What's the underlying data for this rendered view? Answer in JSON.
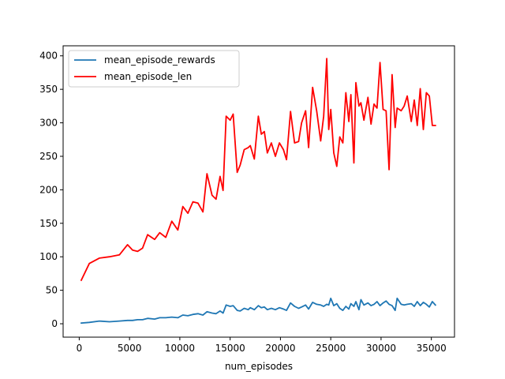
{
  "chart_data": {
    "type": "line",
    "xlabel": "num_episodes",
    "ylabel": "",
    "xlim": [
      -1600,
      37300
    ],
    "ylim": [
      -20,
      415
    ],
    "xticks": [
      0,
      5000,
      10000,
      15000,
      20000,
      25000,
      30000,
      35000
    ],
    "yticks": [
      0,
      50,
      100,
      150,
      200,
      250,
      300,
      350,
      400
    ],
    "grid": false,
    "legend_position": "top-left",
    "series": [
      {
        "name": "mean_episode_rewards",
        "color": "#1f77b4",
        "x": [
          200,
          1000,
          2000,
          3000,
          4000,
          4800,
          5300,
          5800,
          6300,
          6800,
          7500,
          8000,
          8600,
          9200,
          9800,
          10300,
          10800,
          11300,
          11800,
          12300,
          12700,
          13200,
          13600,
          14000,
          14300,
          14600,
          15000,
          15300,
          15700,
          16000,
          16400,
          16800,
          17000,
          17400,
          17800,
          18100,
          18400,
          18700,
          19100,
          19500,
          19900,
          20300,
          20600,
          21000,
          21400,
          21800,
          22100,
          22500,
          22800,
          23200,
          23600,
          24000,
          24300,
          24600,
          24800,
          25000,
          25300,
          25600,
          25900,
          26200,
          26500,
          26800,
          27000,
          27300,
          27500,
          27800,
          28000,
          28300,
          28700,
          29000,
          29300,
          29600,
          29900,
          30200,
          30500,
          30800,
          31100,
          31400,
          31600,
          32000,
          32300,
          32600,
          33000,
          33300,
          33600,
          33900,
          34200,
          34500,
          34800,
          35100,
          35400
        ],
        "values": [
          1,
          2,
          4,
          3,
          4,
          5,
          5,
          6,
          6,
          8,
          7,
          9,
          9,
          10,
          9,
          13,
          12,
          14,
          15,
          13,
          18,
          16,
          15,
          19,
          16,
          28,
          26,
          27,
          20,
          19,
          23,
          21,
          24,
          21,
          27,
          24,
          25,
          21,
          23,
          21,
          24,
          22,
          20,
          31,
          26,
          23,
          25,
          28,
          22,
          32,
          29,
          28,
          26,
          29,
          28,
          38,
          27,
          30,
          23,
          20,
          26,
          22,
          30,
          26,
          33,
          21,
          36,
          28,
          31,
          27,
          29,
          33,
          27,
          31,
          34,
          29,
          27,
          20,
          38,
          29,
          28,
          29,
          30,
          26,
          33,
          27,
          32,
          29,
          25,
          33,
          28
        ]
      },
      {
        "name": "mean_episode_len",
        "color": "#ff0000",
        "x": [
          200,
          1000,
          2000,
          3000,
          4000,
          4800,
          5300,
          5800,
          6300,
          6800,
          7500,
          8000,
          8600,
          9200,
          9800,
          10300,
          10800,
          11300,
          11800,
          12300,
          12700,
          13200,
          13600,
          14000,
          14300,
          14600,
          15000,
          15300,
          15700,
          16000,
          16400,
          16800,
          17000,
          17400,
          17800,
          18100,
          18400,
          18700,
          19100,
          19500,
          19900,
          20300,
          20600,
          21000,
          21400,
          21800,
          22100,
          22500,
          22800,
          23200,
          23600,
          24000,
          24300,
          24600,
          24800,
          25000,
          25300,
          25600,
          25900,
          26200,
          26500,
          26800,
          27000,
          27300,
          27500,
          27800,
          28000,
          28300,
          28700,
          29000,
          29300,
          29600,
          29900,
          30200,
          30500,
          30800,
          31100,
          31400,
          31600,
          32000,
          32300,
          32600,
          33000,
          33300,
          33600,
          33900,
          34200,
          34500,
          34800,
          35100,
          35400
        ],
        "values": [
          65,
          90,
          98,
          100,
          103,
          118,
          110,
          108,
          113,
          133,
          126,
          136,
          129,
          153,
          140,
          175,
          165,
          182,
          180,
          167,
          224,
          192,
          186,
          220,
          199,
          310,
          304,
          313,
          226,
          237,
          260,
          263,
          266,
          246,
          310,
          283,
          287,
          255,
          270,
          250,
          270,
          260,
          245,
          317,
          270,
          272,
          300,
          318,
          263,
          353,
          318,
          273,
          310,
          396,
          290,
          320,
          255,
          235,
          279,
          270,
          345,
          302,
          342,
          240,
          360,
          325,
          330,
          304,
          338,
          298,
          328,
          322,
          390,
          320,
          318,
          230,
          372,
          293,
          322,
          318,
          325,
          340,
          302,
          334,
          296,
          351,
          290,
          345,
          340,
          296,
          296
        ]
      }
    ]
  }
}
